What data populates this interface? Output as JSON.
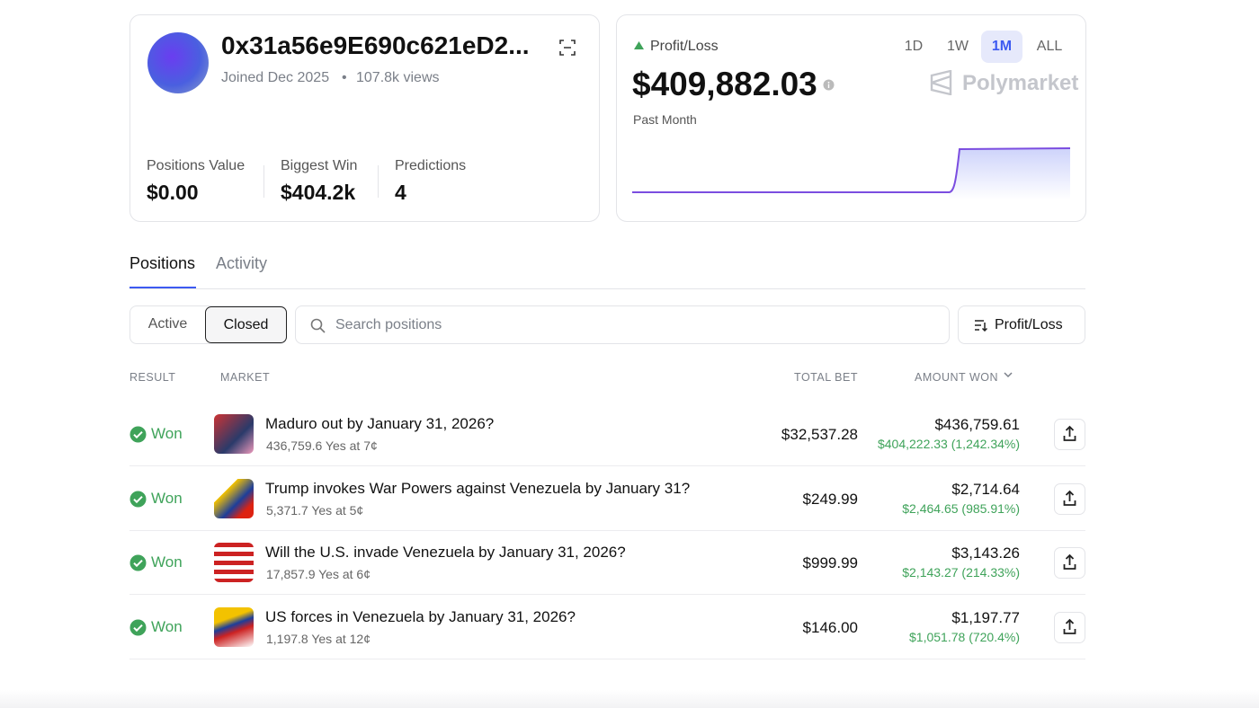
{
  "profile": {
    "address": "0x31a56e9E690c621eD2...",
    "joined": "Joined Dec 2025",
    "views": "107.8k views"
  },
  "stats": [
    {
      "label": "Positions Value",
      "value": "$0.00"
    },
    {
      "label": "Biggest Win",
      "value": "$404.2k"
    },
    {
      "label": "Predictions",
      "value": "4"
    }
  ],
  "pnl": {
    "label": "Profit/Loss",
    "amount": "$409,882.03",
    "period": "Past Month",
    "ranges": [
      "1D",
      "1W",
      "1M",
      "ALL"
    ],
    "active_range": 2,
    "brand": "Polymarket"
  },
  "tabs": [
    "Positions",
    "Activity"
  ],
  "active_tab": 0,
  "filters": [
    "Active",
    "Closed"
  ],
  "active_filter": 1,
  "search_placeholder": "Search positions",
  "sort": "Profit/Loss",
  "table": {
    "headers": [
      "RESULT",
      "MARKET",
      "TOTAL BET",
      "AMOUNT WON"
    ],
    "rows": [
      {
        "result": "Won",
        "title": "Maduro out by January 31, 2026?",
        "shares": "436,759.6 Yes at 7¢",
        "total_bet": "$32,537.28",
        "amount_won": "$436,759.61",
        "profit": "$404,222.33 (1,242.34%)"
      },
      {
        "result": "Won",
        "title": "Trump invokes War Powers against Venezuela by January 31?",
        "shares": "5,371.7 Yes at 5¢",
        "total_bet": "$249.99",
        "amount_won": "$2,714.64",
        "profit": "$2,464.65 (985.91%)"
      },
      {
        "result": "Won",
        "title": "Will the U.S. invade Venezuela by January 31, 2026?",
        "shares": "17,857.9 Yes at 6¢",
        "total_bet": "$999.99",
        "amount_won": "$3,143.26",
        "profit": "$2,143.27 (214.33%)"
      },
      {
        "result": "Won",
        "title": "US forces in Venezuela by January 31, 2026?",
        "shares": "1,197.8 Yes at 12¢",
        "total_bet": "$146.00",
        "amount_won": "$1,197.77",
        "profit": "$1,051.78 (720.4%)"
      }
    ]
  }
}
